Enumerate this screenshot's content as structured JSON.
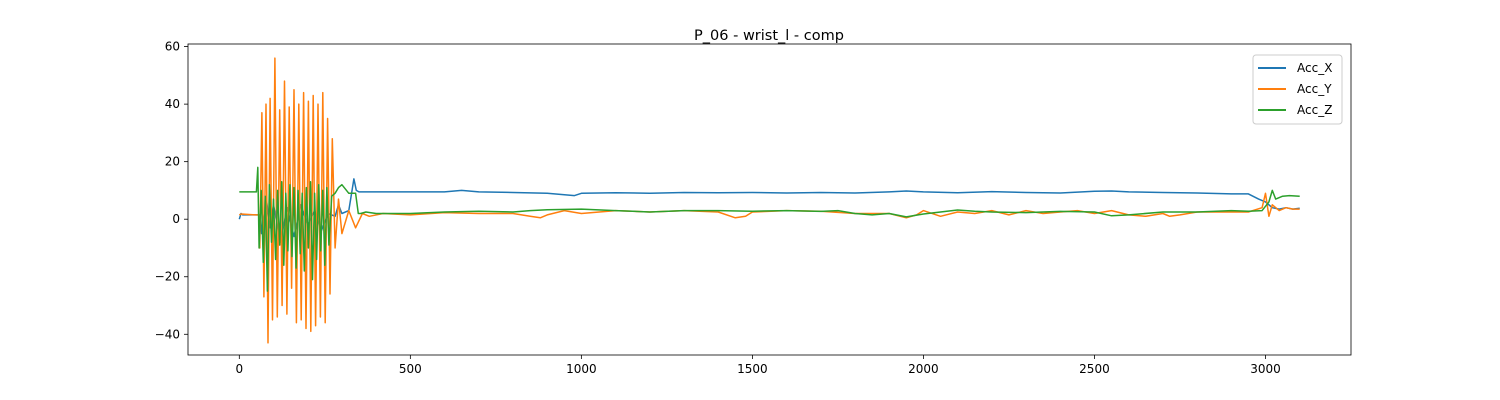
{
  "chart_data": {
    "type": "line",
    "title": "P_06 - wrist_l - comp",
    "xlabel": "",
    "ylabel": "",
    "xlim": [
      -150,
      3250
    ],
    "ylim": [
      -47.2,
      60.9
    ],
    "xticks": [
      0,
      500,
      1000,
      1500,
      2000,
      2500,
      3000
    ],
    "yticks": [
      -40,
      -20,
      0,
      20,
      40,
      60
    ],
    "grid": false,
    "legend_position": "top-right",
    "series": [
      {
        "name": "Acc_X",
        "color": "#1f77b4",
        "x": [
          0,
          5,
          10,
          60,
          65,
          80,
          90,
          100,
          120,
          140,
          160,
          180,
          200,
          220,
          240,
          260,
          280,
          290,
          300,
          320,
          335,
          342,
          350,
          360,
          400,
          500,
          600,
          650,
          700,
          800,
          900,
          980,
          1000,
          1100,
          1200,
          1300,
          1400,
          1500,
          1600,
          1700,
          1800,
          1900,
          1950,
          2000,
          2100,
          2200,
          2300,
          2400,
          2500,
          2550,
          2600,
          2700,
          2800,
          2900,
          2950,
          2980,
          3000,
          3020,
          3040,
          3060,
          3080,
          3100
        ],
        "y": [
          0,
          2,
          1.5,
          1.5,
          -5,
          6,
          -3,
          5,
          -8,
          4,
          -6,
          5,
          -2,
          3,
          -4,
          2,
          1,
          5,
          2,
          3,
          14,
          10,
          9.5,
          9.5,
          9.5,
          9.5,
          9.5,
          10,
          9.5,
          9.3,
          9,
          8.2,
          9,
          9.2,
          9,
          9.3,
          9.2,
          9.3,
          9.1,
          9.3,
          9.1,
          9.5,
          9.8,
          9.5,
          9.2,
          9.6,
          9.3,
          9.1,
          9.7,
          9.8,
          9.5,
          9.3,
          9.1,
          8.8,
          8.8,
          7,
          6,
          4,
          3.5,
          4,
          3.5,
          3.8
        ]
      },
      {
        "name": "Acc_Y",
        "color": "#ff7f0e",
        "x": [
          0,
          5,
          50,
          58,
          60,
          66,
          72,
          78,
          84,
          90,
          97,
          104,
          111,
          118,
          125,
          132,
          139,
          146,
          153,
          160,
          167,
          174,
          181,
          188,
          195,
          202,
          209,
          216,
          223,
          230,
          237,
          244,
          251,
          258,
          265,
          272,
          280,
          290,
          300,
          320,
          340,
          360,
          380,
          420,
          500,
          600,
          700,
          800,
          850,
          880,
          900,
          950,
          1000,
          1100,
          1200,
          1300,
          1400,
          1450,
          1480,
          1500,
          1600,
          1700,
          1800,
          1900,
          1950,
          1980,
          2000,
          2050,
          2100,
          2150,
          2200,
          2250,
          2300,
          2350,
          2400,
          2450,
          2500,
          2550,
          2600,
          2650,
          2700,
          2720,
          2750,
          2800,
          2900,
          2950,
          2990,
          3000,
          3010,
          3020,
          3040,
          3060,
          3080,
          3100
        ],
        "y": [
          1.5,
          1.8,
          1.5,
          1.5,
          -10,
          37,
          -27,
          40,
          -43,
          42,
          -35,
          56,
          -34,
          38,
          -30,
          48,
          -33,
          39,
          -24,
          45,
          -36,
          40,
          -35,
          44,
          -38,
          41,
          -39,
          43,
          -37,
          40,
          -34,
          44,
          -36,
          35,
          -26,
          28,
          -10,
          7,
          -5,
          3,
          -3,
          2,
          1,
          2,
          1.5,
          2.3,
          2,
          2,
          1,
          0.5,
          1.5,
          3,
          2,
          3,
          2.5,
          3,
          2.5,
          0.5,
          1,
          2.5,
          3,
          2.8,
          2,
          2,
          0.5,
          1.5,
          3,
          1,
          2.5,
          2,
          3,
          1.5,
          3,
          2,
          2.5,
          3,
          2,
          3,
          1.5,
          1,
          2,
          1,
          1.5,
          2.5,
          2.5,
          2.5,
          4,
          9,
          1,
          5,
          3,
          4,
          3.5,
          3.5
        ]
      },
      {
        "name": "Acc_Z",
        "color": "#2ca02c",
        "x": [
          0,
          3,
          50,
          54,
          58,
          64,
          70,
          76,
          82,
          88,
          94,
          100,
          106,
          112,
          118,
          124,
          130,
          136,
          142,
          148,
          154,
          160,
          166,
          172,
          178,
          184,
          190,
          196,
          202,
          208,
          214,
          220,
          226,
          232,
          238,
          244,
          250,
          256,
          262,
          270,
          280,
          290,
          300,
          320,
          340,
          348,
          355,
          370,
          400,
          500,
          600,
          700,
          800,
          850,
          900,
          1000,
          1100,
          1200,
          1300,
          1400,
          1500,
          1600,
          1700,
          1750,
          1800,
          1850,
          1900,
          1950,
          2000,
          2050,
          2100,
          2150,
          2200,
          2300,
          2400,
          2500,
          2550,
          2600,
          2700,
          2800,
          2900,
          2950,
          2990,
          3010,
          3020,
          3030,
          3050,
          3070,
          3100
        ],
        "y": [
          9.5,
          9.5,
          9.5,
          18,
          -10,
          10,
          -15,
          8,
          -25,
          12,
          -8,
          7,
          -14,
          10,
          -9,
          13,
          -16,
          9,
          -11,
          12,
          -13,
          11,
          -17,
          10,
          -12,
          9,
          -18,
          11,
          -10,
          13,
          -21,
          9,
          -14,
          12,
          -11,
          10,
          -16,
          11,
          -9,
          8,
          9,
          11,
          12,
          9,
          9,
          2,
          2,
          2.5,
          2,
          2,
          2.5,
          2.8,
          2.5,
          3,
          3.3,
          3.5,
          3,
          2.5,
          3,
          3,
          2.8,
          3,
          2.7,
          3,
          2,
          1.5,
          2,
          0.8,
          1.8,
          2.5,
          3.2,
          2.8,
          2.5,
          2.3,
          2.7,
          2.5,
          1.2,
          1.5,
          2.5,
          2.5,
          3,
          2.8,
          3,
          6,
          10,
          7,
          8,
          8.2,
          8
        ]
      }
    ]
  }
}
